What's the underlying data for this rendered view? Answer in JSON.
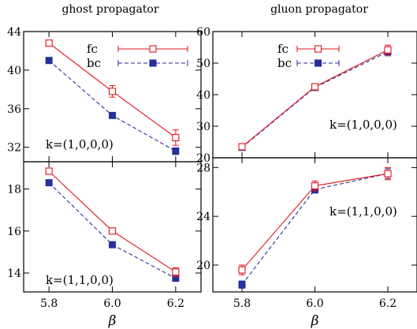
{
  "colors": {
    "fc": "#e3131b",
    "bc": "#27309a",
    "axis": "#000000"
  },
  "chart_data": [
    {
      "type": "line",
      "title": "ghost propagator",
      "annotation": "k=(1,0,0,0)",
      "xlabel": "β",
      "ylabel": "",
      "xlim": [
        5.72,
        6.28
      ],
      "ylim": [
        30.5,
        44
      ],
      "xticks": [
        "5.8",
        "6.0",
        "6.2"
      ],
      "yticks": [
        "32",
        "36",
        "40",
        "44"
      ],
      "x": [
        5.8,
        6.0,
        6.2
      ],
      "series": [
        {
          "name": "fc",
          "values": [
            42.8,
            37.8,
            33.0
          ],
          "errors": [
            0.3,
            0.6,
            0.8
          ],
          "marker": "open-square",
          "line": "solid"
        },
        {
          "name": "bc",
          "values": [
            41.0,
            35.3,
            31.6
          ],
          "errors": [
            0.25,
            0.3,
            0.35
          ],
          "marker": "filled-square",
          "line": "dashed"
        }
      ]
    },
    {
      "type": "line",
      "title": "",
      "annotation": "k=(1,1,0,0)",
      "xlabel": "β",
      "ylabel": "",
      "xlim": [
        5.72,
        6.28
      ],
      "ylim": [
        13.1,
        19.3
      ],
      "xticks": [
        "5.8",
        "6.0",
        "6.2"
      ],
      "yticks": [
        "14",
        "16",
        "18"
      ],
      "x": [
        5.8,
        6.0,
        6.2
      ],
      "series": [
        {
          "name": "fc",
          "values": [
            18.85,
            16.0,
            14.05
          ],
          "errors": [
            0.15,
            0.12,
            0.2
          ]
        },
        {
          "name": "bc",
          "values": [
            18.3,
            15.35,
            13.75
          ],
          "errors": [
            0.1,
            0.08,
            0.1
          ]
        }
      ]
    },
    {
      "type": "line",
      "title": "gluon propagator",
      "annotation": "k=(1,0,0,0)",
      "xlabel": "β",
      "ylabel": "",
      "xlim": [
        5.72,
        6.28
      ],
      "ylim": [
        20,
        60
      ],
      "xticks": [
        "5.8",
        "6.0",
        "6.2"
      ],
      "yticks": [
        "20",
        "30",
        "40",
        "50",
        "60"
      ],
      "x": [
        5.8,
        6.0,
        6.2
      ],
      "series": [
        {
          "name": "fc",
          "values": [
            23.5,
            42.5,
            54.2
          ],
          "errors": [
            0.6,
            0.8,
            1.5
          ]
        },
        {
          "name": "bc",
          "values": [
            23.3,
            42.3,
            53.6
          ],
          "errors": [
            0.5,
            0.7,
            1.3
          ]
        }
      ]
    },
    {
      "type": "line",
      "title": "",
      "annotation": "k=(1,1,0,0)",
      "xlabel": "β",
      "ylabel": "",
      "xlim": [
        5.72,
        6.28
      ],
      "ylim": [
        17.8,
        28.8
      ],
      "xticks": [
        "5.8",
        "6.0",
        "6.2"
      ],
      "yticks": [
        "20",
        "24",
        "28"
      ],
      "x": [
        5.8,
        6.0,
        6.2
      ],
      "series": [
        {
          "name": "fc",
          "values": [
            19.6,
            26.5,
            27.5
          ],
          "errors": [
            0.4,
            0.4,
            0.5
          ]
        },
        {
          "name": "bc",
          "values": [
            18.4,
            26.2,
            27.5
          ],
          "errors": [
            0.3,
            0.3,
            0.4
          ]
        }
      ]
    }
  ]
}
